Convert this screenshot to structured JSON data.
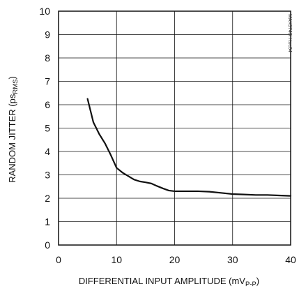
{
  "chart_data": {
    "type": "line",
    "title": "",
    "xlabel": {
      "main": "DIFFERENTIAL INPUT AMPLITUDE (mV",
      "sub": "P-P",
      "close": ")"
    },
    "ylabel": {
      "main": "RANDOM JITTER (ps",
      "sub": "RMS",
      "close": ")"
    },
    "xlim": [
      0,
      40
    ],
    "ylim": [
      0,
      10
    ],
    "xticks": [
      0,
      10,
      20,
      30,
      40
    ],
    "yticks": [
      0,
      1,
      2,
      3,
      4,
      5,
      6,
      7,
      8,
      9,
      10
    ],
    "grid": true,
    "tag": "MAX3748H toc04",
    "series": [
      {
        "x": [
          5,
          5.5,
          6,
          7,
          8,
          9,
          10,
          11,
          12,
          13,
          14,
          15,
          16,
          17,
          18,
          19,
          20,
          22,
          24,
          26,
          28,
          30,
          32,
          34,
          36,
          38,
          40
        ],
        "y": [
          6.25,
          5.75,
          5.25,
          4.75,
          4.35,
          3.85,
          3.3,
          3.1,
          2.95,
          2.8,
          2.72,
          2.68,
          2.63,
          2.52,
          2.42,
          2.33,
          2.3,
          2.3,
          2.3,
          2.28,
          2.23,
          2.18,
          2.16,
          2.14,
          2.14,
          2.12,
          2.1
        ],
        "color": "#111111"
      }
    ]
  }
}
